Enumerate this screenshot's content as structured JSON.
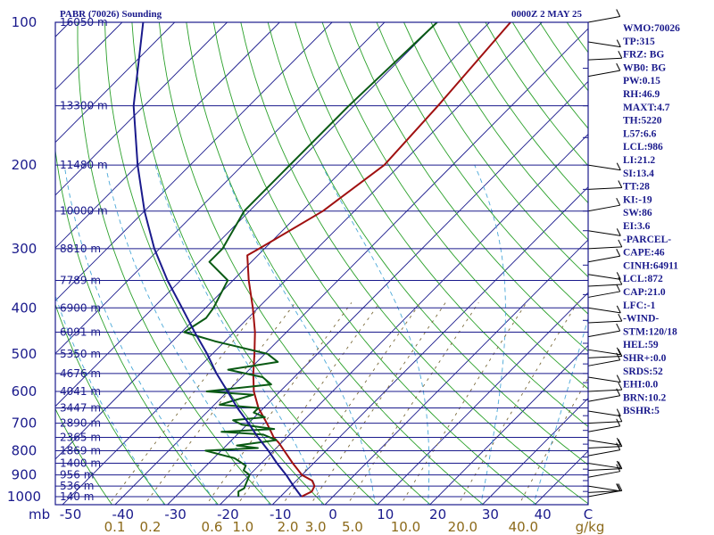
{
  "chart_data": {
    "type": "line",
    "title": "PABR (70026) Sounding",
    "time_label": "0000Z  2 MAY 25",
    "x_unit_label": "mb",
    "x_ticks": [
      -50,
      -40,
      -30,
      -20,
      -10,
      0,
      10,
      20,
      30,
      40,
      "C"
    ],
    "mixing_ratio_ticks": [
      "0.1",
      "0.2",
      "0.6",
      "1.0",
      "2.0",
      "3.0",
      "5.0",
      "10.0",
      "20.0",
      "40.0"
    ],
    "mixing_ratio_unit": "g/kg",
    "pressure_levels": [
      100,
      200,
      300,
      400,
      500,
      600,
      700,
      800,
      900,
      1000
    ],
    "height_labels": [
      {
        "p": 100,
        "label": "16050 m"
      },
      {
        "p": 150,
        "label": "13300 m"
      },
      {
        "p": 200,
        "label": "11480 m"
      },
      {
        "p": 250,
        "label": "10000 m"
      },
      {
        "p": 300,
        "label": "8810 m"
      },
      {
        "p": 350,
        "label": "7789 m"
      },
      {
        "p": 400,
        "label": "6900 m"
      },
      {
        "p": 450,
        "label": "6091 m"
      },
      {
        "p": 500,
        "label": "5350 m"
      },
      {
        "p": 550,
        "label": "4676 m"
      },
      {
        "p": 600,
        "label": "4041 m"
      },
      {
        "p": 650,
        "label": "3447 m"
      },
      {
        "p": 700,
        "label": "2890 m"
      },
      {
        "p": 750,
        "label": "2365 m"
      },
      {
        "p": 800,
        "label": "1869 m"
      },
      {
        "p": 850,
        "label": "1400 m"
      },
      {
        "p": 900,
        "label": "956 m"
      },
      {
        "p": 950,
        "label": "536 m"
      },
      {
        "p": 1000,
        "label": "140 m"
      }
    ],
    "series": [
      {
        "name": "temperature",
        "color": "#a01010",
        "points": [
          {
            "p": 1000,
            "t": -6.0
          },
          {
            "p": 975,
            "t": -5.0
          },
          {
            "p": 950,
            "t": -5.5
          },
          {
            "p": 925,
            "t": -7.0
          },
          {
            "p": 900,
            "t": -10.0
          },
          {
            "p": 850,
            "t": -14.0
          },
          {
            "p": 800,
            "t": -18.0
          },
          {
            "p": 770,
            "t": -20.5
          },
          {
            "p": 750,
            "t": -22.5
          },
          {
            "p": 700,
            "t": -26.5
          },
          {
            "p": 650,
            "t": -31.0
          },
          {
            "p": 600,
            "t": -35.0
          },
          {
            "p": 550,
            "t": -38.5
          },
          {
            "p": 500,
            "t": -42.0
          },
          {
            "p": 450,
            "t": -46.0
          },
          {
            "p": 400,
            "t": -51.0
          },
          {
            "p": 350,
            "t": -57.0
          },
          {
            "p": 310,
            "t": -62.0
          },
          {
            "p": 300,
            "t": -61.0
          },
          {
            "p": 250,
            "t": -56.0
          },
          {
            "p": 200,
            "t": -53.0
          },
          {
            "p": 150,
            "t": -54.0
          },
          {
            "p": 100,
            "t": -56.0
          }
        ]
      },
      {
        "name": "dewpoint",
        "color": "#0a5a14",
        "points": [
          {
            "p": 1000,
            "t": -18.0
          },
          {
            "p": 975,
            "t": -19.0
          },
          {
            "p": 960,
            "t": -18.5
          },
          {
            "p": 940,
            "t": -19.0
          },
          {
            "p": 900,
            "t": -20.0
          },
          {
            "p": 880,
            "t": -22.0
          },
          {
            "p": 860,
            "t": -22.5
          },
          {
            "p": 830,
            "t": -26.0
          },
          {
            "p": 800,
            "t": -33.0
          },
          {
            "p": 790,
            "t": -23.5
          },
          {
            "p": 780,
            "t": -28.0
          },
          {
            "p": 760,
            "t": -21.5
          },
          {
            "p": 740,
            "t": -25.0
          },
          {
            "p": 730,
            "t": -33.5
          },
          {
            "p": 720,
            "t": -24.0
          },
          {
            "p": 705,
            "t": -31.0
          },
          {
            "p": 690,
            "t": -33.5
          },
          {
            "p": 680,
            "t": -28.0
          },
          {
            "p": 665,
            "t": -31.0
          },
          {
            "p": 650,
            "t": -31.0
          },
          {
            "p": 640,
            "t": -39.0
          },
          {
            "p": 610,
            "t": -34.5
          },
          {
            "p": 600,
            "t": -44.0
          },
          {
            "p": 580,
            "t": -33.0
          },
          {
            "p": 560,
            "t": -36.0
          },
          {
            "p": 540,
            "t": -44.0
          },
          {
            "p": 520,
            "t": -36.0
          },
          {
            "p": 500,
            "t": -39.5
          },
          {
            "p": 470,
            "t": -52.0
          },
          {
            "p": 450,
            "t": -59.5
          },
          {
            "p": 420,
            "t": -58.0
          },
          {
            "p": 400,
            "t": -58.5
          },
          {
            "p": 350,
            "t": -61.0
          },
          {
            "p": 320,
            "t": -68.0
          },
          {
            "p": 300,
            "t": -68.0
          },
          {
            "p": 250,
            "t": -71.0
          },
          {
            "p": 200,
            "t": -71.0
          },
          {
            "p": 150,
            "t": -71.0
          },
          {
            "p": 100,
            "t": -70.0
          }
        ]
      },
      {
        "name": "parcel",
        "color": "#1a1a8c",
        "points": [
          {
            "p": 1000,
            "t": -6.0
          },
          {
            "p": 950,
            "t": -9.5
          },
          {
            "p": 900,
            "t": -13.0
          },
          {
            "p": 850,
            "t": -17.0
          },
          {
            "p": 800,
            "t": -21.0
          },
          {
            "p": 750,
            "t": -25.5
          },
          {
            "p": 700,
            "t": -30.0
          },
          {
            "p": 650,
            "t": -35.0
          },
          {
            "p": 600,
            "t": -40.0
          },
          {
            "p": 550,
            "t": -45.5
          },
          {
            "p": 500,
            "t": -51.0
          },
          {
            "p": 450,
            "t": -57.5
          },
          {
            "p": 400,
            "t": -64.5
          },
          {
            "p": 350,
            "t": -72.5
          },
          {
            "p": 300,
            "t": -81.0
          },
          {
            "p": 250,
            "t": -90.0
          },
          {
            "p": 200,
            "t": -100.0
          },
          {
            "p": 150,
            "t": -112.0
          },
          {
            "p": 100,
            "t": -126.0
          }
        ]
      }
    ],
    "indices": [
      "WMO:70026",
      "TP:315",
      "FRZ: BG",
      "WB0: BG",
      "PW:0.15",
      "RH:46.9",
      "MAXT:4.7",
      "TH:5220",
      "L57:6.6",
      "LCL:986",
      "LI:21.2",
      "SI:13.4",
      "TT:28",
      "KI:-19",
      "SW:86",
      "EI:3.6",
      "-PARCEL-",
      "CAPE:46",
      "CINH:64911",
      "LCL:872",
      "CAP:21.0",
      "LFC:-1",
      "-WIND-",
      "STM:120/18",
      "HEL:59",
      "SHR+:0.0",
      "SRDS:52",
      "EHI:0.0",
      "BRN:10.2",
      "BSHR:5"
    ],
    "colors": {
      "frame": "#1a1a8c",
      "isotherm": "#1a1a8c",
      "dry_adiabat": "#2aa02a",
      "moist_adiabat": "#4aa8d8",
      "mixing_ratio": "#7a6a3a",
      "mixing_label": "#8c6a1a",
      "wind_barb": "#000000"
    }
  }
}
